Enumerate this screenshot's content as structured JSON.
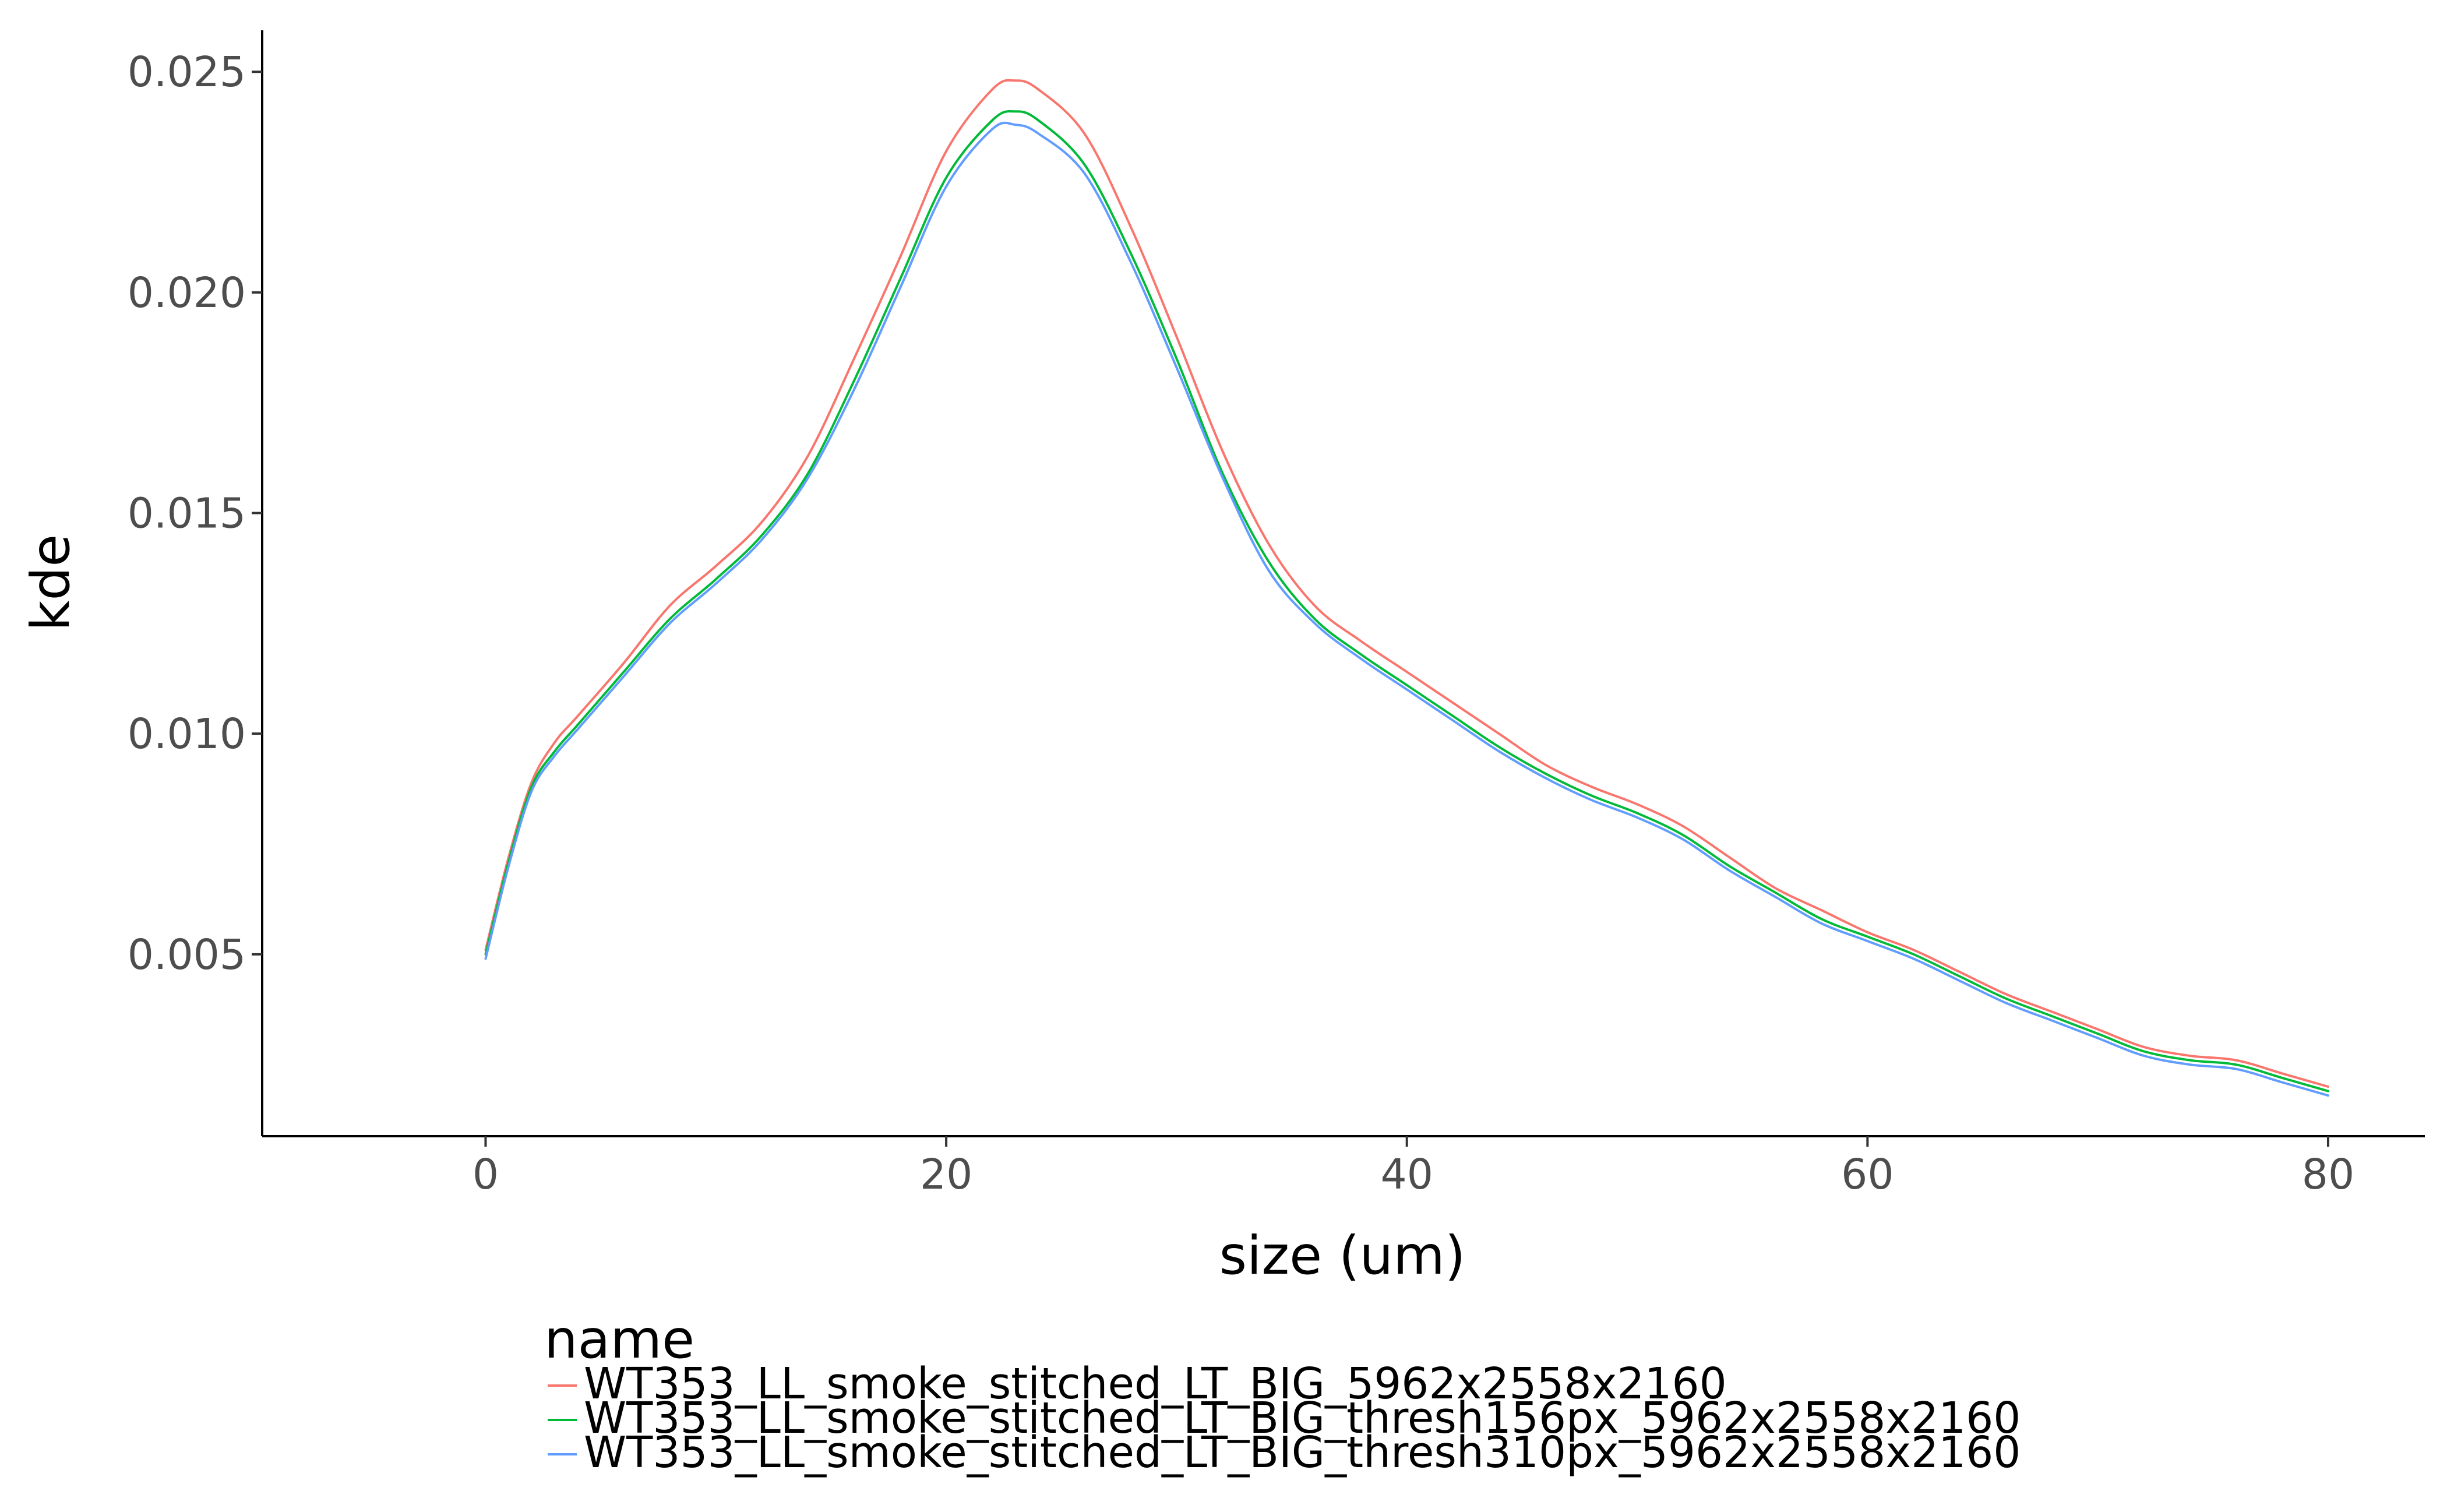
{
  "chart_data": {
    "type": "line",
    "title": "",
    "xlabel": "size (um)",
    "ylabel": "kde",
    "xlim": [
      -9.7,
      84.2
    ],
    "ylim": [
      0.000878,
      0.02594
    ],
    "x_ticks": [
      0,
      20,
      40,
      60,
      80
    ],
    "x_tick_labels": [
      "0",
      "20",
      "40",
      "60",
      "80"
    ],
    "y_ticks": [
      0.005,
      0.01,
      0.015,
      0.02,
      0.025
    ],
    "y_tick_labels": [
      "0.005",
      "0.010",
      "0.015",
      "0.020",
      "0.025"
    ],
    "grid": false,
    "legend": {
      "title": "name",
      "placement": "bottom"
    },
    "x": [
      0,
      1,
      2,
      3,
      4,
      6,
      8,
      10,
      12,
      14,
      16,
      18,
      20,
      22,
      23,
      24,
      26,
      28,
      30,
      32,
      34,
      36,
      38,
      40,
      42,
      44,
      46,
      48,
      50,
      52,
      54,
      56,
      58,
      60,
      62,
      64,
      66,
      68,
      70,
      72,
      74,
      76,
      78,
      80
    ],
    "series": [
      {
        "name": "WT353_LL_smoke_stitched_LT_BIG_5962x2558x2160",
        "color": "#F8766D",
        "values": [
          0.0051,
          0.0072,
          0.0089,
          0.0098,
          0.0104,
          0.0116,
          0.0129,
          0.0138,
          0.0148,
          0.0163,
          0.0185,
          0.0208,
          0.0232,
          0.0246,
          0.0248,
          0.0246,
          0.0236,
          0.0215,
          0.019,
          0.0164,
          0.0143,
          0.0129,
          0.0121,
          0.0114,
          0.0107,
          0.01,
          0.0093,
          0.0088,
          0.0084,
          0.0079,
          0.0072,
          0.0065,
          0.006,
          0.0055,
          0.0051,
          0.0046,
          0.0041,
          0.0037,
          0.0033,
          0.0029,
          0.0027,
          0.0026,
          0.0023,
          0.002
        ]
      },
      {
        "name": "WT353_LL_smoke_stitched_LT_BIG_thresh156px_5962x2558x2160",
        "color": "#00BA38",
        "values": [
          0.005,
          0.0071,
          0.0088,
          0.0096,
          0.0102,
          0.0114,
          0.0126,
          0.0135,
          0.0145,
          0.0159,
          0.018,
          0.0203,
          0.0226,
          0.0239,
          0.0241,
          0.0239,
          0.0229,
          0.0209,
          0.0185,
          0.0159,
          0.0139,
          0.0126,
          0.0118,
          0.0111,
          0.0104,
          0.0097,
          0.0091,
          0.0086,
          0.0082,
          0.0077,
          0.007,
          0.0064,
          0.0058,
          0.0054,
          0.005,
          0.0045,
          0.004,
          0.0036,
          0.0032,
          0.0028,
          0.0026,
          0.0025,
          0.0022,
          0.0019
        ]
      },
      {
        "name": "WT353_LL_smoke_stitched_LT_BIG_thresh310px_5962x2558x2160",
        "color": "#619CFF",
        "values": [
          0.0049,
          0.007,
          0.0087,
          0.0095,
          0.0101,
          0.0113,
          0.0125,
          0.0134,
          0.0144,
          0.0158,
          0.0178,
          0.0201,
          0.0224,
          0.0237,
          0.0238,
          0.0236,
          0.0227,
          0.0207,
          0.0183,
          0.0158,
          0.0137,
          0.0125,
          0.0117,
          0.011,
          0.0103,
          0.0096,
          0.009,
          0.0085,
          0.0081,
          0.0076,
          0.0069,
          0.0063,
          0.0057,
          0.0053,
          0.0049,
          0.0044,
          0.0039,
          0.0035,
          0.0031,
          0.0027,
          0.0025,
          0.0024,
          0.0021,
          0.0018
        ]
      }
    ]
  }
}
